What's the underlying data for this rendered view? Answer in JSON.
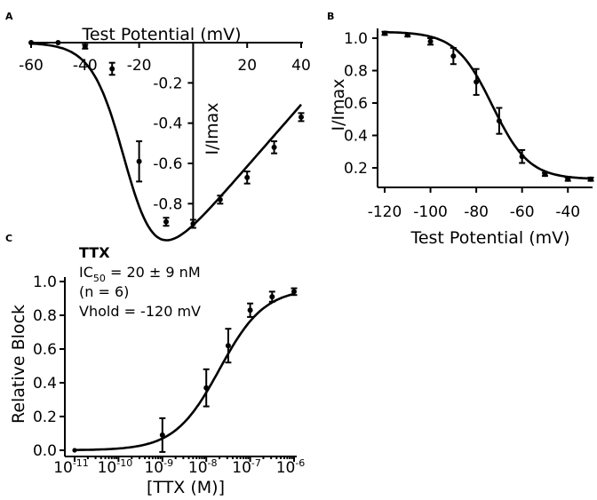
{
  "panels": {
    "A": {
      "letter": "A"
    },
    "B": {
      "letter": "B"
    },
    "C": {
      "letter": "C"
    }
  },
  "chart_data": [
    {
      "id": "A",
      "type": "line",
      "title": "",
      "xlabel": "Test Potential (mV)",
      "ylabel": "I/Imax",
      "xlim": [
        -60,
        40
      ],
      "ylim": [
        -1.0,
        0.0
      ],
      "xticks": [
        {
          "v": -60,
          "label": "-60"
        },
        {
          "v": -40,
          "label": "-40"
        },
        {
          "v": -20,
          "label": "-20"
        },
        {
          "v": 20,
          "label": "20"
        },
        {
          "v": 40,
          "label": "40"
        }
      ],
      "yticks": [
        {
          "v": -0.2,
          "label": "-0.2"
        },
        {
          "v": -0.4,
          "label": "-0.4"
        },
        {
          "v": -0.6,
          "label": "-0.6"
        },
        {
          "v": -0.8,
          "label": "-0.8"
        }
      ],
      "x": [
        -60,
        -50,
        -40,
        -30,
        -20,
        -10,
        0,
        10,
        20,
        30,
        40
      ],
      "values": [
        0.0,
        0.0,
        -0.02,
        -0.13,
        -0.59,
        -0.89,
        -0.9,
        -0.78,
        -0.67,
        -0.52,
        -0.37
      ],
      "errors": [
        0.0,
        0.0,
        0.01,
        0.03,
        0.1,
        0.02,
        0.02,
        0.02,
        0.03,
        0.03,
        0.02
      ],
      "grid": false
    },
    {
      "id": "B",
      "type": "line",
      "title": "",
      "xlabel": "Test Potential (mV)",
      "ylabel": "I/Imax",
      "xlim": [
        -120,
        -30
      ],
      "ylim": [
        0.1,
        1.05
      ],
      "xticks": [
        {
          "v": -120,
          "label": "-120"
        },
        {
          "v": -100,
          "label": "-100"
        },
        {
          "v": -80,
          "label": "-80"
        },
        {
          "v": -60,
          "label": "-60"
        },
        {
          "v": -40,
          "label": "-40"
        }
      ],
      "yticks": [
        {
          "v": 0.2,
          "label": "0.2"
        },
        {
          "v": 0.4,
          "label": "0.4"
        },
        {
          "v": 0.6,
          "label": "0.6"
        },
        {
          "v": 0.8,
          "label": "0.8"
        },
        {
          "v": 1.0,
          "label": "1.0"
        }
      ],
      "x": [
        -120,
        -110,
        -100,
        -90,
        -80,
        -70,
        -60,
        -50,
        -40,
        -30
      ],
      "values": [
        1.03,
        1.02,
        0.98,
        0.89,
        0.73,
        0.49,
        0.27,
        0.16,
        0.13,
        0.13
      ],
      "errors": [
        0.01,
        0.01,
        0.02,
        0.05,
        0.08,
        0.08,
        0.04,
        0.01,
        0.01,
        0.01
      ],
      "grid": false
    },
    {
      "id": "C",
      "type": "line",
      "title": "TTX",
      "xlabel": "[TTX (M)]",
      "ylabel": "Relative Block",
      "xscale": "log",
      "xlim": [
        -11,
        -6
      ],
      "ylim": [
        0.0,
        1.0
      ],
      "xticks": [
        {
          "v": -11,
          "base": "10",
          "exp": "-11"
        },
        {
          "v": -10,
          "base": "10",
          "exp": "-10"
        },
        {
          "v": -9,
          "base": "10",
          "exp": "-9"
        },
        {
          "v": -8,
          "base": "10",
          "exp": "-8"
        },
        {
          "v": -7,
          "base": "10",
          "exp": "-7"
        },
        {
          "v": -6,
          "base": "10",
          "exp": "-6"
        }
      ],
      "yticks": [
        {
          "v": 0.0,
          "label": "0.0"
        },
        {
          "v": 0.2,
          "label": "0.2"
        },
        {
          "v": 0.4,
          "label": "0.4"
        },
        {
          "v": 0.6,
          "label": "0.6"
        },
        {
          "v": 0.8,
          "label": "0.8"
        },
        {
          "v": 1.0,
          "label": "1.0"
        }
      ],
      "x": [
        -9,
        -8,
        -7.5,
        -7,
        -6.5,
        -6
      ],
      "values": [
        0.09,
        0.37,
        0.62,
        0.83,
        0.91,
        0.94
      ],
      "errors": [
        0.1,
        0.11,
        0.1,
        0.04,
        0.03,
        0.02
      ],
      "annotations": {
        "ic50_prefix": "IC",
        "ic50_sub": "50",
        "ic50_value": " = 20 ± 9 nM",
        "n": "(n = 6)",
        "vhold": "Vhold = -120 mV"
      },
      "grid": false
    }
  ]
}
